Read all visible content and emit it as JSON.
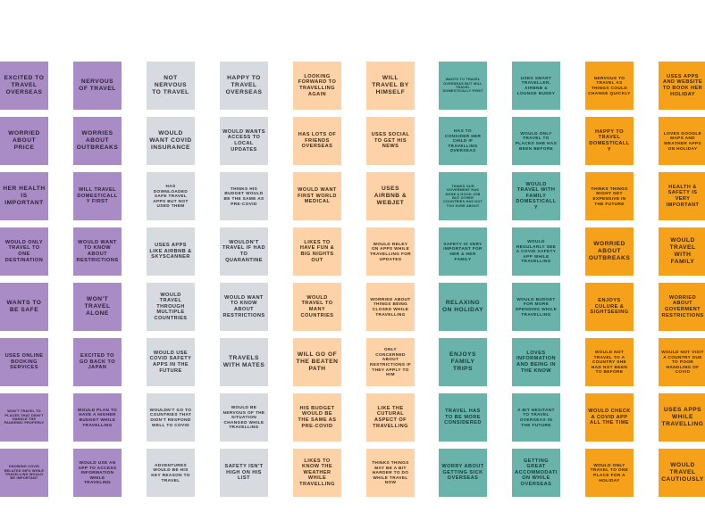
{
  "colors": {
    "purple": "#a98bc6",
    "gray": "#d7dbe0",
    "peach": "#fdd2a6",
    "teal": "#69b3aa",
    "orange": "#f6a11a"
  },
  "columns": [
    {
      "color": "purple",
      "notes": [
        "EXCITED TO TRAVEL OVERSEAS",
        "WORRIED ABOUT PRICE",
        "HER HEALTH IS IMPORTANT",
        "WOULD ONLY TRAVEL TO ONE DESTINATION",
        "WANTS TO BE SAFE",
        "USES ONLINE BOOKING SERVICES",
        "WON'T TRAVEL TO PLACES THAT DIDN'T HANDLE THE PANDEMIC PROPERLY",
        "KNOWING COVID RELATED INFO WHILE TRAVELLING WOULD BE IMPORTANT"
      ]
    },
    {
      "color": "purple",
      "notes": [
        "NERVOUS OF TRAVEL",
        "WORRIES ABOUT OUTBREAKS",
        "WILL TRAVEL DOMESTICALLY FIRST",
        "WOULD WANT TO KNOW ABOUT RESTRICTIONS",
        "WON'T TRAVEL ALONE",
        "EXCITED TO GO BACK TO JAPAN",
        "WOULD PLAN TO HAVE A HIGHER BUDGET WHILE TRAVELLING",
        "WOULD USE AN APP TO ACCESS INFORMATION WHILE TRAVELING"
      ]
    },
    {
      "color": "gray",
      "notes": [
        "NOT NERVOUS TO TRAVEL",
        "WOULD WANT COVID INSURANCE",
        "HAS DOWNLOADED SAFE TRAVEL APPS BUT NOT USED THEM",
        "USES APPS LIKE AIRBNB & SKYSCANNER",
        "WOULD TRAVEL THROUGH MULTIPLE COUNTRIES",
        "WOULD USE COVID SAFETY APPS IN THE FUTURE",
        "WOULDN'T GO TO COUNTRIES THAT DIDN'T RESPOND WELL TO COVID",
        "ADVENTURES WOULD BE HIS KEY REASON TO TRAVEL"
      ]
    },
    {
      "color": "gray",
      "notes": [
        "HAPPY TO TRAVEL OVERSEAS",
        "WOULD WANTS ACCESS TO LOCAL UPDATES",
        "THINKS HIS BUDGET WOULD BE THE SAME AS PRE-COVID",
        "WOULDN'T TRAVEL IF HAD TO QUARANTINE",
        "WOULD WANT TO KNOW ABOUT RESTRICTIONS",
        "TRAVELS WITH MATES",
        "WOULD BE NERVOUS OF THE SITUATION CHANGED WHILE TRAVELLING",
        "SAFETY ISN'T HIGH ON HIS LIST"
      ]
    },
    {
      "color": "peach",
      "notes": [
        "LOOKING FORWARD TO TRAVELLING AGAIN",
        "HAS LOTS OF FRIENDS OVERSEAS",
        "WOULD WANT FIRST WORLD MEDICAL",
        "LIKES TO HAVE FUN & BIG NIGHTS OUT",
        "WOULD TRAVEL TO MANY COUNTRIES",
        "WILL GO OF THE BEATEN PATH",
        "HIS BUDGET WOULD BE THE SAME AS PRE-COVID",
        "LIKES TO KNOW THE WEATHER WHILE TRAVELLING"
      ]
    },
    {
      "color": "peach",
      "notes": [
        "WILL TRAVEL BY HIMSELF",
        "USES SOCIAL TO GET HIS NEWS",
        "USES AIRBNB & WEBJET",
        "WOULD RELEY ON APPS WHILE TRAVELLING FOR UPDATES",
        "WORRIED ABOUT THINGS BEING CLOSED WHILE TRAVELLING",
        "ONLY CONCERNED ABOUT RESTRICTIONS IF THEY APPLY TO HIM",
        "LIKE THE CUTURAL ASPECT OF TRAVELLING",
        "THINKS THINGS MAY BE A BIT HARDER TO DO WHILE TRAVEL NOW"
      ]
    },
    {
      "color": "teal",
      "notes": [
        "WANTS TO TRAVEL OVERSEAS BUT WILL TRAVEL DOMESTICALLY FIRST",
        "HAS TO CONSIDER HER CHILD IF TRAVELLING OVERSEAS",
        "THINKS OUR GOVERMENT HAS DONE A GOOD JOB BUT OTHER COUNTRIES HAS NOT TOO SURE ABOUT",
        "SAFETY IS VERY IMPORTANT FOR HER & HER FAMILY",
        "RELAXING ON HOLIDAY",
        "ENJOYS FAMILY TRIPS",
        "TRAVEL HAS TO BE MORE CONSIDERED",
        "WORRY ABOUT GETTING SICK OVERSEAS"
      ]
    },
    {
      "color": "teal",
      "notes": [
        "USES SMART TRAVELLER, AIRBNB & LOUNGE BUDDY",
        "WOULD ONLY TRAVEL TO PLACES SHE HAS BEEN BEFORE",
        "WOULD TRAVEL WITH FAMILY DOMESTICALLY",
        "WOULD REGULARLY SEE A COVID SAFETY APP WHILE TRAVELLING",
        "WOULD BUDGET FOR MORE SPENDING WHILE TRAVELLING",
        "LOVES INFORMATION AND BEING IN THE KNOW",
        "A BIT HESITANT TO TRAVEL OVERSEAS IN THE FUTURE",
        "GETTING GREAT ACCOMMODATION WHILE OVERSEAS"
      ]
    },
    {
      "color": "orange",
      "notes": [
        "NERVOUS TO TRAVEL AS THINGS COULD CHANGE QUICKLY",
        "HAPPY TO TRAVEL DOMESTICALLY",
        "THINKS THINGS MIGHT GET EXPENSIVE IN THE FUTURE",
        "WORRIED ABOUT OUTBREAKS",
        "ENJOYS CULURE & SIGHTSEEING",
        "WOULD NOT TRAVEL TO A COUNTRY SHE HAD NOT BEEN TO BEFORE",
        "WOULD CHECK A COVID APP ALL THE TIME",
        "WOULD ONLY TRAVEL TO ONE PLACE FOR A HOLIDAY"
      ]
    },
    {
      "color": "orange",
      "notes": [
        "USES APPS AND WEBSITE TO BOOK HER HOLIDAY",
        "LOVES GOOGLE MAPS AND WEATHER APPS ON HOLIDAY",
        "HEALTH & SAFETY IS VERY IMPORTANT",
        "WOULD TRAVEL WITH FAMILY",
        "WORRIED ABOUT GOVERMENT RESTRICTIONS",
        "WOULD NOT VISIT A COUNTRY DUE TO POOR HANDLING OF COVID",
        "USES APPS WHILE TRAVELLING",
        "WOULD TRAVEL CAUTIOUSLY"
      ]
    }
  ]
}
